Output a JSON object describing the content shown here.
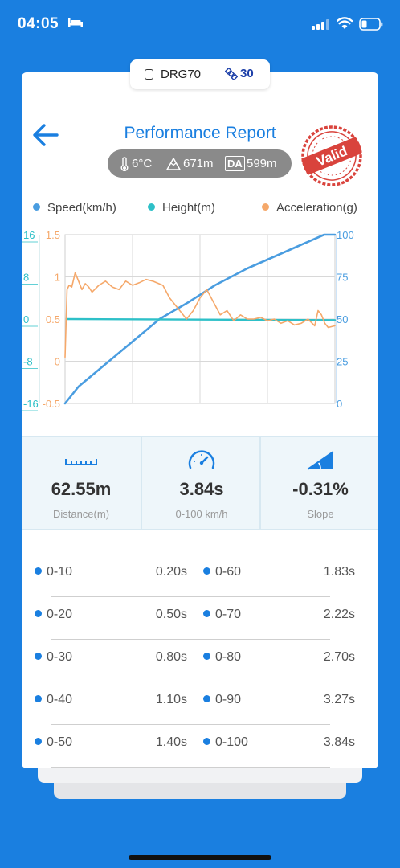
{
  "status_bar": {
    "time": "04:05"
  },
  "device": {
    "name": "DRG70",
    "satellites": "30"
  },
  "header": {
    "title": "Performance Report",
    "stamp_text": "Valid"
  },
  "conditions": {
    "temperature": "6°C",
    "altitude": "671m",
    "da_label": "DA",
    "density_altitude": "599m"
  },
  "legend": [
    {
      "label": "Speed(km/h)",
      "color": "#4a9de0"
    },
    {
      "label": "Height(m)",
      "color": "#2ec0c8"
    },
    {
      "label": "Acceleration(g)",
      "color": "#f5a86a"
    }
  ],
  "chart_data": {
    "type": "line",
    "xlabel": "",
    "axes": {
      "height": {
        "ticks": [
          "16",
          "8",
          "0",
          "-8",
          "-16"
        ],
        "range": [
          -16,
          16
        ],
        "color": "#2ec0c8"
      },
      "acceleration": {
        "ticks": [
          "1.5",
          "1",
          "0.5",
          "0",
          "-0.5"
        ],
        "range": [
          -0.5,
          1.5
        ],
        "color": "#f5a86a"
      },
      "speed": {
        "ticks": [
          "100",
          "75",
          "50",
          "25",
          "0"
        ],
        "range": [
          0,
          100
        ],
        "color": "#4a9de0"
      }
    },
    "x_range": [
      0,
      4
    ],
    "grid": true,
    "series": [
      {
        "name": "Speed(km/h)",
        "axis": "speed",
        "x": [
          0,
          0.2,
          0.5,
          0.8,
          1.1,
          1.4,
          1.83,
          2.22,
          2.7,
          3.27,
          3.84,
          4.0
        ],
        "y": [
          0,
          10,
          20,
          30,
          40,
          50,
          60,
          70,
          80,
          90,
          100,
          102
        ]
      },
      {
        "name": "Height(m)",
        "axis": "height",
        "x": [
          0.02,
          4.0
        ],
        "y": [
          0.0,
          -0.2
        ]
      },
      {
        "name": "Acceleration(g)",
        "axis": "acceleration",
        "x": [
          0.0,
          0.03,
          0.06,
          0.1,
          0.15,
          0.2,
          0.25,
          0.3,
          0.35,
          0.4,
          0.5,
          0.6,
          0.7,
          0.8,
          0.9,
          1.0,
          1.1,
          1.2,
          1.3,
          1.45,
          1.55,
          1.7,
          1.8,
          1.9,
          2.0,
          2.1,
          2.2,
          2.3,
          2.4,
          2.5,
          2.6,
          2.7,
          2.8,
          2.9,
          3.0,
          3.1,
          3.2,
          3.3,
          3.4,
          3.5,
          3.6,
          3.7,
          3.75,
          3.8,
          3.85,
          3.9,
          4.0
        ],
        "y": [
          0.05,
          0.85,
          0.9,
          0.88,
          1.05,
          0.95,
          0.85,
          0.92,
          0.88,
          0.82,
          0.9,
          0.95,
          0.88,
          0.85,
          0.95,
          0.9,
          0.93,
          0.97,
          0.95,
          0.9,
          0.75,
          0.6,
          0.5,
          0.6,
          0.75,
          0.85,
          0.7,
          0.55,
          0.6,
          0.48,
          0.55,
          0.5,
          0.5,
          0.52,
          0.48,
          0.5,
          0.45,
          0.48,
          0.43,
          0.45,
          0.5,
          0.42,
          0.6,
          0.55,
          0.45,
          0.4,
          0.42
        ]
      }
    ]
  },
  "stats": [
    {
      "value": "62.55m",
      "label": "Distance(m)",
      "icon": "ruler-icon"
    },
    {
      "value": "3.84s",
      "label": "0-100 km/h",
      "icon": "speedometer-icon"
    },
    {
      "value": "-0.31%",
      "label": "Slope",
      "icon": "slope-icon"
    }
  ],
  "splits": [
    {
      "left_label": "0-10",
      "left_time": "0.20s",
      "right_label": "0-60",
      "right_time": "1.83s"
    },
    {
      "left_label": "0-20",
      "left_time": "0.50s",
      "right_label": "0-70",
      "right_time": "2.22s"
    },
    {
      "left_label": "0-30",
      "left_time": "0.80s",
      "right_label": "0-80",
      "right_time": "2.70s"
    },
    {
      "left_label": "0-40",
      "left_time": "1.10s",
      "right_label": "0-90",
      "right_time": "3.27s"
    },
    {
      "left_label": "0-50",
      "left_time": "1.40s",
      "right_label": "0-100",
      "right_time": "3.84s"
    }
  ]
}
